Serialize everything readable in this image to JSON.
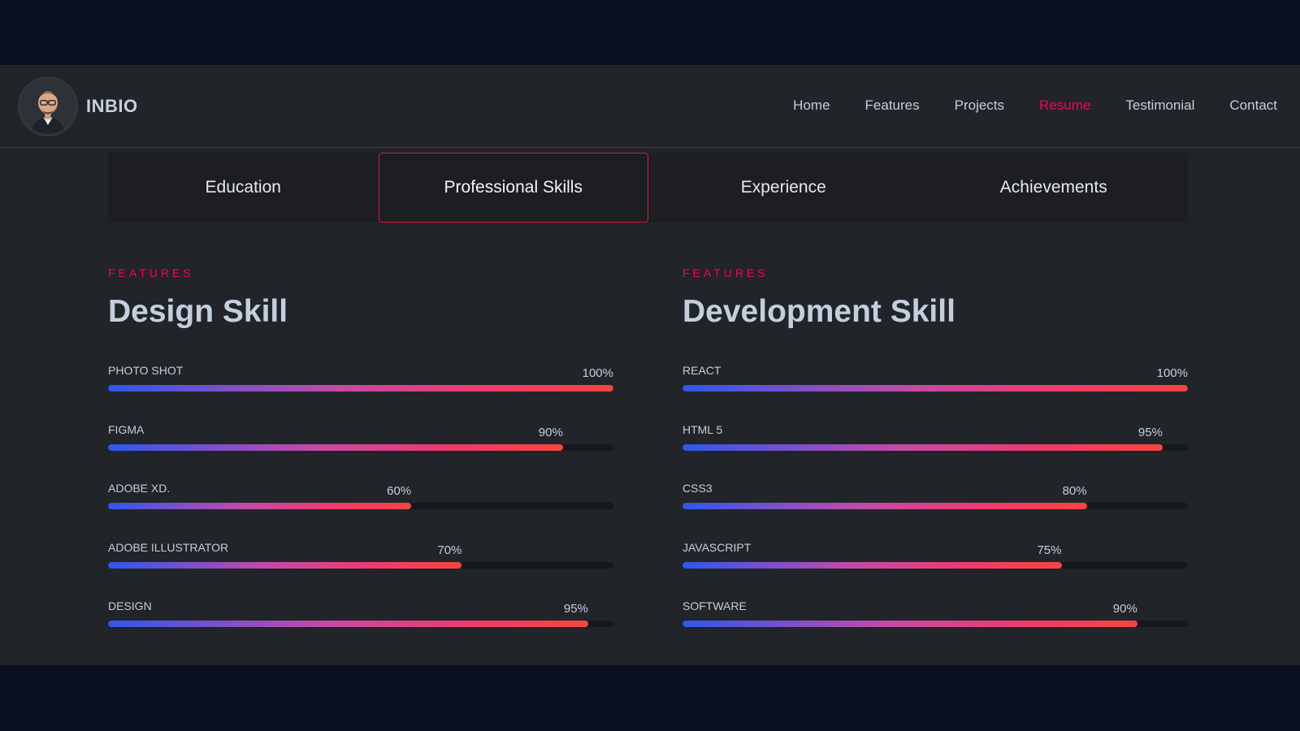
{
  "header": {
    "brand": "INBIO",
    "nav": [
      "Home",
      "Features",
      "Projects",
      "Resume",
      "Testimonial",
      "Contact"
    ],
    "active_nav": "Resume"
  },
  "tabs": [
    "Education",
    "Professional Skills",
    "Experience",
    "Achievements"
  ],
  "active_tab": "Professional Skills",
  "design": {
    "kicker": "FEATURES",
    "title": "Design Skill",
    "skills": [
      {
        "name": "PHOTO SHOT",
        "percent": 100,
        "label": "100%"
      },
      {
        "name": "FIGMA",
        "percent": 90,
        "label": "90%"
      },
      {
        "name": "ADOBE XD.",
        "percent": 60,
        "label": "60%"
      },
      {
        "name": "ADOBE ILLUSTRATOR",
        "percent": 70,
        "label": "70%"
      },
      {
        "name": "DESIGN",
        "percent": 95,
        "label": "95%"
      }
    ]
  },
  "development": {
    "kicker": "FEATURES",
    "title": "Development Skill",
    "skills": [
      {
        "name": "REACT",
        "percent": 100,
        "label": "100%"
      },
      {
        "name": "HTML 5",
        "percent": 95,
        "label": "95%"
      },
      {
        "name": "CSS3",
        "percent": 80,
        "label": "80%"
      },
      {
        "name": "JAVASCRIPT",
        "percent": 75,
        "label": "75%"
      },
      {
        "name": "SOFTWARE",
        "percent": 90,
        "label": "90%"
      }
    ]
  },
  "colors": {
    "accent": "#ff014f",
    "background": "#212428",
    "outer": "#0b1120",
    "text": "#c4cfde",
    "bar_start": "#2f57ef",
    "bar_end": "#f5453f"
  }
}
